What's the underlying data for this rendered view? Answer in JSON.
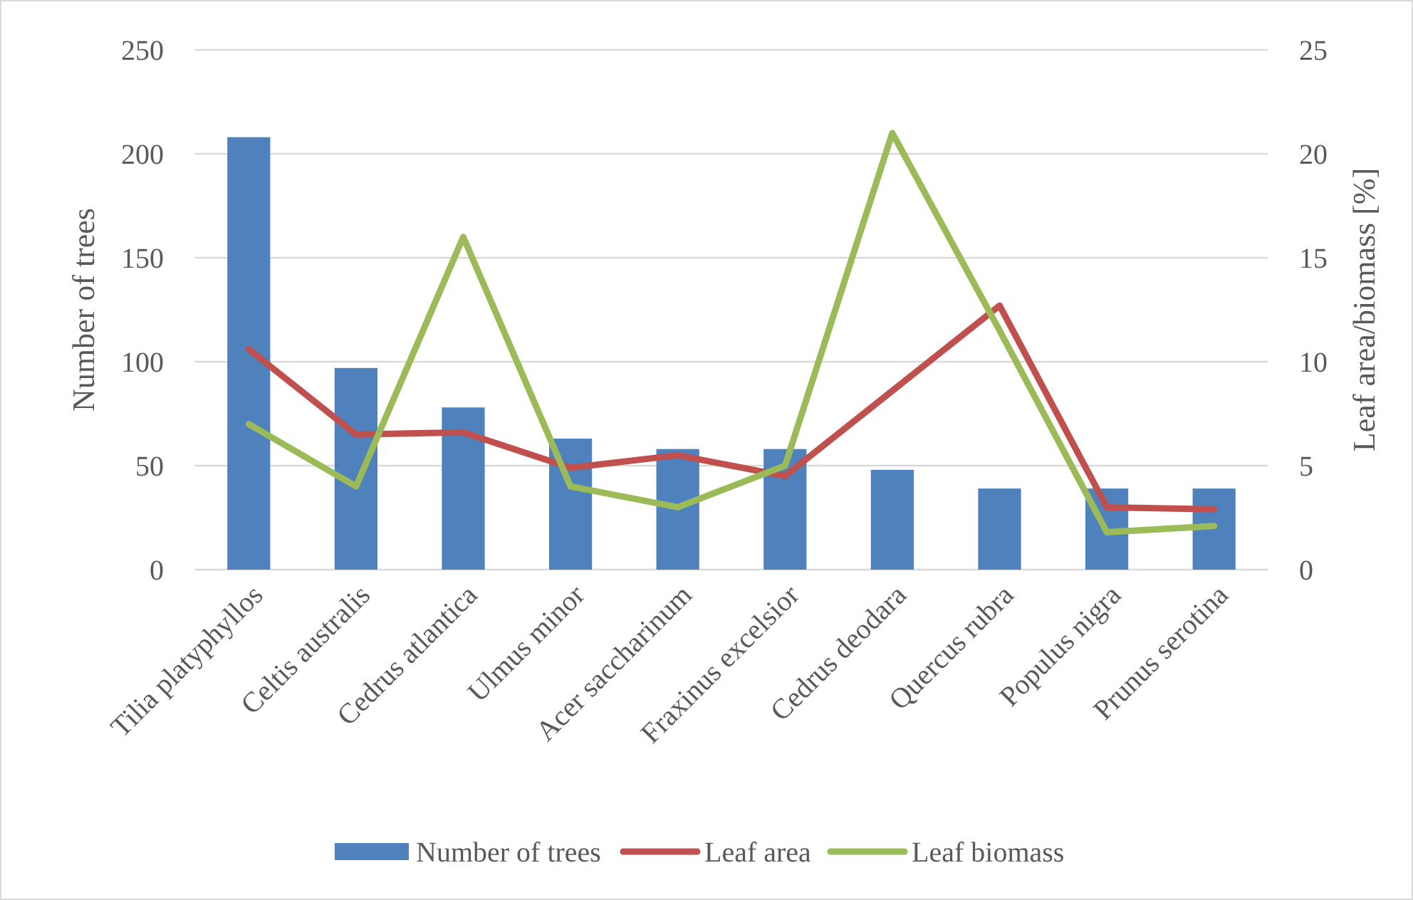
{
  "chart_data": {
    "type": "bar",
    "categories": [
      "Tilia platyphyllos",
      "Celtis australis",
      "Cedrus atlantica",
      "Ulmus minor",
      "Acer saccharinum",
      "Fraxinus excelsior",
      "Cedrus deodara",
      "Quercus rubra",
      "Populus nigra",
      "Prunus serotina"
    ],
    "series": [
      {
        "name": "Number of trees",
        "color": "#4f81bd",
        "values": [
          208,
          97,
          78,
          63,
          58,
          58,
          48,
          39,
          39,
          39
        ]
      },
      {
        "name": "Leaf area",
        "type": "line",
        "axis": "y2",
        "color": "#c0504d",
        "values": [
          10.6,
          6.5,
          6.6,
          4.9,
          5.5,
          4.5,
          8.6,
          12.7,
          3.0,
          2.9
        ]
      },
      {
        "name": "Leaf biomass",
        "type": "line",
        "axis": "y2",
        "color": "#9bbb59",
        "values": [
          7,
          4,
          16,
          4,
          3,
          5,
          21,
          11.5,
          1.8,
          2.1
        ]
      }
    ],
    "ylabel": "Number of trees",
    "y2label": "Leaf area/biomass [%]",
    "ylim": [
      0,
      250
    ],
    "yticks": [
      0,
      50,
      100,
      150,
      200,
      250
    ],
    "y2lim": [
      0,
      25
    ],
    "y2ticks": [
      0,
      5,
      10,
      15,
      20,
      25
    ],
    "grid": "y",
    "legend": "bottom",
    "line_style": "solid",
    "marker": "none"
  }
}
